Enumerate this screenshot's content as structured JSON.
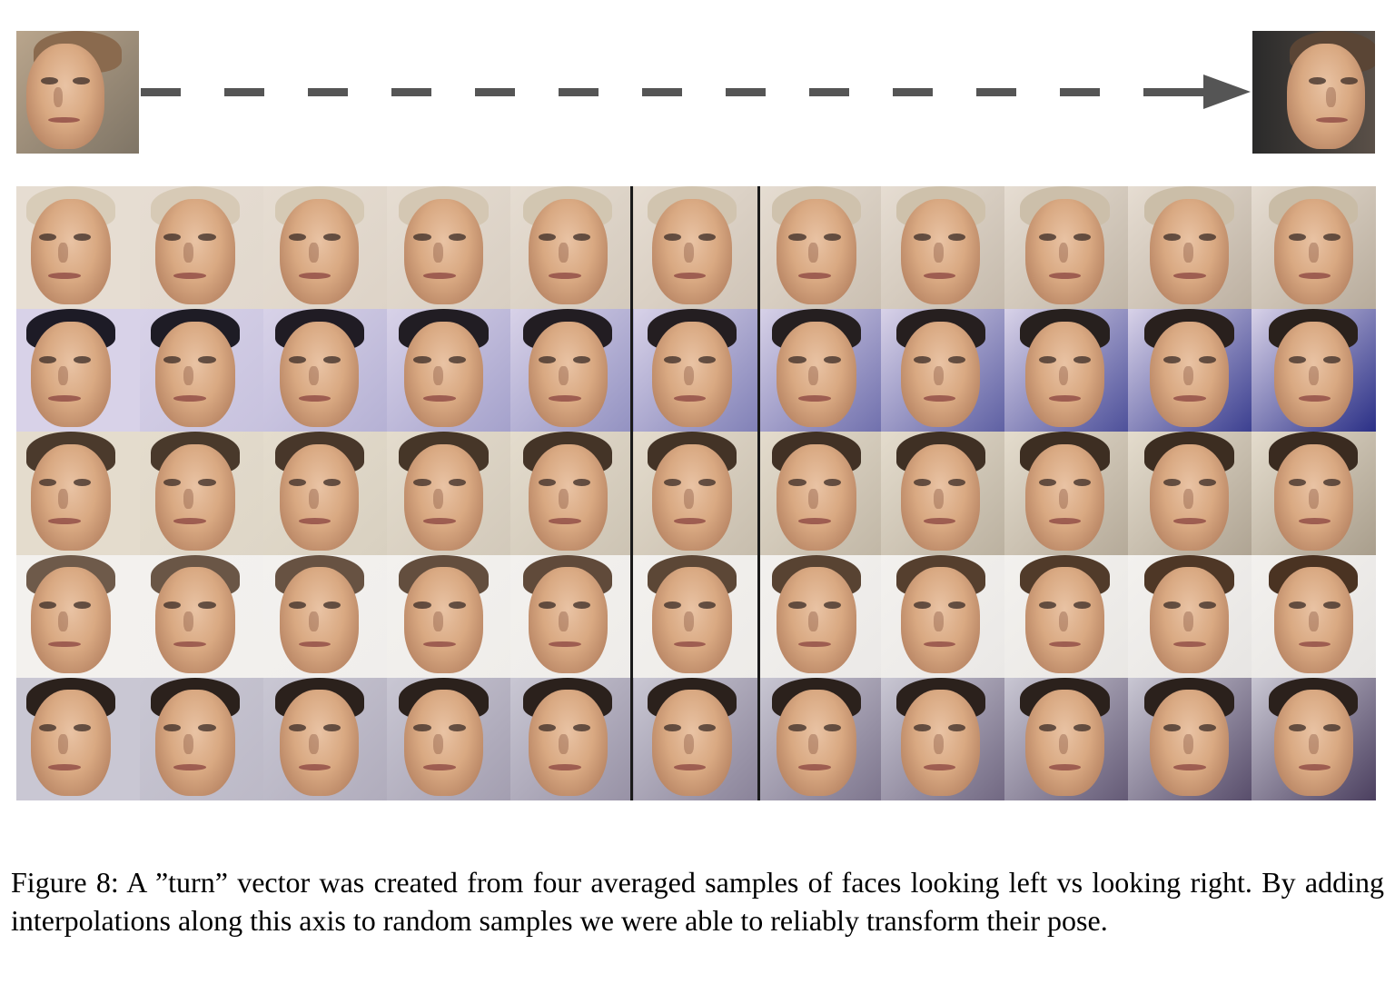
{
  "figure": {
    "caption": "Figure 8: A ”turn” vector was created from four averaged samples of faces looking left vs looking right. By adding interpolations along this axis to random samples we were able to reliably transform their pose.",
    "source_face_left": {
      "description": "face looking left"
    },
    "target_face_right": {
      "description": "face looking right"
    },
    "grid": {
      "rows": 5,
      "columns": 11,
      "row_styles": [
        {
          "bg": [
            "#e6ddd2",
            "#b7ab9b"
          ],
          "hair": [
            "#d8ccb8",
            "#c9bca6"
          ]
        },
        {
          "bg": [
            "#d8d2e8",
            "#2a2f86"
          ],
          "hair": [
            "#1d1b26",
            "#2a211c"
          ]
        },
        {
          "bg": [
            "#e4dccd",
            "#a99e8c"
          ],
          "hair": [
            "#4b3a2c",
            "#3a2b20"
          ]
        },
        {
          "bg": [
            "#f3f1ee",
            "#e6e4e2"
          ],
          "hair": [
            "#6e5a4a",
            "#4a3322"
          ]
        },
        {
          "bg": [
            "#c9c7d3",
            "#4b3f5f"
          ],
          "hair": [
            "#2b211c",
            "#2b211c"
          ]
        }
      ]
    }
  }
}
